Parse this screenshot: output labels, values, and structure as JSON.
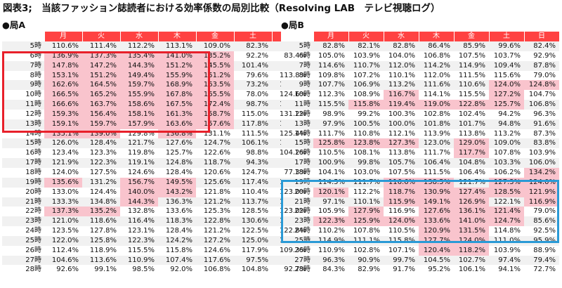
{
  "title": "図表3;　当該ファッション誌読者における効率係数の局別比較（Resolving LAB　テレビ視聴ログ）",
  "colors": {
    "header_bg": "#ff4242",
    "highlight": "#f9c4cd",
    "box_a": "#e8202a",
    "box_b": "#2a9ad6"
  },
  "headers": [
    "月",
    "火",
    "水",
    "木",
    "金",
    "土",
    "日"
  ],
  "panels": [
    {
      "label": "●局A",
      "hours": [
        "5時",
        "6時",
        "7時",
        "8時",
        "9時",
        "10時",
        "11時",
        "12時",
        "13時",
        "14時",
        "15時",
        "16時",
        "17時",
        "18時",
        "19時",
        "20時",
        "21時",
        "22時",
        "23時",
        "24時",
        "25時",
        "26時",
        "27時",
        "28時"
      ],
      "rows": [
        [
          "110.6%",
          "111.4%",
          "112.2%",
          "113.1%",
          "109.0%",
          "82.3%",
          "98.3%"
        ],
        [
          "136.9%",
          "137.3%",
          "135.4%",
          "141.0%",
          "135.2%",
          "92.2%",
          "83.4%"
        ],
        [
          "147.8%",
          "147.2%",
          "144.3%",
          "151.2%",
          "145.5%",
          "101.4%",
          "98.1%"
        ],
        [
          "153.1%",
          "151.2%",
          "149.4%",
          "155.9%",
          "151.2%",
          "79.6%",
          "113.8%"
        ],
        [
          "162.6%",
          "164.5%",
          "159.7%",
          "168.9%",
          "163.5%",
          "73.2%",
          "117.9%"
        ],
        [
          "166.5%",
          "165.2%",
          "155.9%",
          "167.8%",
          "165.5%",
          "78.0%",
          "124.6%"
        ],
        [
          "166.6%",
          "163.7%",
          "158.6%",
          "167.5%",
          "172.4%",
          "98.7%",
          "127.3%"
        ],
        [
          "159.3%",
          "156.4%",
          "158.1%",
          "161.3%",
          "158.7%",
          "115.0%",
          "131.2%"
        ],
        [
          "159.1%",
          "159.7%",
          "157.9%",
          "163.6%",
          "157.6%",
          "117.8%",
          "132.5%"
        ],
        [
          "135.1%",
          "139.0%",
          "129.8%",
          "136.8%",
          "131.1%",
          "111.5%",
          "125.4%"
        ],
        [
          "126.0%",
          "128.4%",
          "121.7%",
          "127.6%",
          "124.7%",
          "106.1%",
          "104.7%"
        ],
        [
          "123.4%",
          "123.3%",
          "119.8%",
          "125.7%",
          "122.6%",
          "98.8%",
          "104.2%"
        ],
        [
          "121.9%",
          "122.3%",
          "119.1%",
          "124.8%",
          "118.7%",
          "94.3%",
          "90.7%"
        ],
        [
          "124.0%",
          "127.5%",
          "124.6%",
          "128.4%",
          "120.6%",
          "124.7%",
          "77.3%"
        ],
        [
          "135.6%",
          "131.2%",
          "156.7%",
          "149.5%",
          "125.6%",
          "117.4%",
          "110.8%"
        ],
        [
          "133.0%",
          "124.4%",
          "140.0%",
          "143.2%",
          "121.8%",
          "110.4%",
          "123.0%"
        ],
        [
          "133.3%",
          "134.8%",
          "144.3%",
          "136.3%",
          "121.2%",
          "113.7%",
          "120.5%"
        ],
        [
          "137.3%",
          "135.2%",
          "132.8%",
          "133.6%",
          "125.3%",
          "128.5%",
          "123.0%"
        ],
        [
          "121.0%",
          "118.6%",
          "116.4%",
          "118.3%",
          "122.8%",
          "130.6%",
          "131.5%"
        ],
        [
          "123.5%",
          "127.8%",
          "123.1%",
          "128.4%",
          "121.2%",
          "122.5%",
          "122.8%"
        ],
        [
          "122.0%",
          "125.8%",
          "122.3%",
          "124.2%",
          "127.2%",
          "125.0%",
          "117.0%"
        ],
        [
          "112.4%",
          "118.9%",
          "115.5%",
          "115.8%",
          "124.6%",
          "117.9%",
          "109.3%"
        ],
        [
          "104.6%",
          "113.6%",
          "110.9%",
          "107.4%",
          "117.6%",
          "97.5%",
          "95.4%"
        ],
        [
          "92.6%",
          "99.1%",
          "98.5%",
          "92.0%",
          "106.8%",
          "104.8%",
          "92.7%"
        ]
      ],
      "highlights": [
        [
          1,
          0
        ],
        [
          1,
          1
        ],
        [
          1,
          2
        ],
        [
          1,
          3
        ],
        [
          1,
          4
        ],
        [
          2,
          0
        ],
        [
          2,
          1
        ],
        [
          2,
          2
        ],
        [
          2,
          3
        ],
        [
          2,
          4
        ],
        [
          3,
          0
        ],
        [
          3,
          1
        ],
        [
          3,
          2
        ],
        [
          3,
          3
        ],
        [
          3,
          4
        ],
        [
          4,
          0
        ],
        [
          4,
          1
        ],
        [
          4,
          2
        ],
        [
          4,
          3
        ],
        [
          4,
          4
        ],
        [
          5,
          0
        ],
        [
          5,
          1
        ],
        [
          5,
          2
        ],
        [
          5,
          3
        ],
        [
          5,
          4
        ],
        [
          6,
          0
        ],
        [
          6,
          1
        ],
        [
          6,
          2
        ],
        [
          6,
          3
        ],
        [
          6,
          4
        ],
        [
          7,
          0
        ],
        [
          7,
          1
        ],
        [
          7,
          2
        ],
        [
          7,
          3
        ],
        [
          7,
          4
        ],
        [
          8,
          0
        ],
        [
          8,
          1
        ],
        [
          8,
          2
        ],
        [
          8,
          3
        ],
        [
          8,
          4
        ],
        [
          9,
          0
        ],
        [
          9,
          1
        ],
        [
          9,
          3
        ],
        [
          14,
          0
        ],
        [
          14,
          2
        ],
        [
          14,
          3
        ],
        [
          15,
          2
        ],
        [
          15,
          3
        ],
        [
          16,
          2
        ],
        [
          17,
          0
        ],
        [
          17,
          1
        ]
      ]
    },
    {
      "label": "●局B",
      "hours": [
        "5時",
        "6時",
        "7時",
        "8時",
        "9時",
        "10時",
        "11時",
        "12時",
        "13時",
        "14時",
        "15時",
        "16時",
        "17時",
        "18時",
        "19時",
        "20時",
        "21時",
        "22時",
        "23時",
        "24時",
        "25時",
        "26時",
        "27時",
        "28時"
      ],
      "rows": [
        [
          "82.8%",
          "82.1%",
          "82.8%",
          "86.4%",
          "85.9%",
          "99.6%",
          "82.4%"
        ],
        [
          "105.0%",
          "103.9%",
          "104.0%",
          "106.8%",
          "107.5%",
          "103.7%",
          "92.9%"
        ],
        [
          "114.6%",
          "110.7%",
          "112.0%",
          "114.2%",
          "114.9%",
          "109.4%",
          "87.8%"
        ],
        [
          "109.8%",
          "107.2%",
          "110.1%",
          "112.0%",
          "111.5%",
          "115.6%",
          "79.0%"
        ],
        [
          "107.7%",
          "106.9%",
          "113.2%",
          "111.6%",
          "110.6%",
          "124.0%",
          "124.8%"
        ],
        [
          "112.3%",
          "108.9%",
          "116.7%",
          "114.1%",
          "115.5%",
          "127.2%",
          "104.7%"
        ],
        [
          "115.5%",
          "115.8%",
          "119.4%",
          "119.0%",
          "122.8%",
          "125.7%",
          "106.8%"
        ],
        [
          "98.9%",
          "99.2%",
          "100.3%",
          "102.8%",
          "102.4%",
          "94.2%",
          "96.3%"
        ],
        [
          "97.9%",
          "100.5%",
          "100.0%",
          "101.8%",
          "101.7%",
          "94.8%",
          "91.6%"
        ],
        [
          "111.7%",
          "110.8%",
          "112.1%",
          "113.9%",
          "113.8%",
          "113.2%",
          "87.3%"
        ],
        [
          "125.8%",
          "123.8%",
          "127.3%",
          "123.0%",
          "129.0%",
          "109.0%",
          "83.8%"
        ],
        [
          "110.5%",
          "108.1%",
          "113.8%",
          "111.7%",
          "117.7%",
          "107.8%",
          "103.9%"
        ],
        [
          "100.9%",
          "99.8%",
          "105.7%",
          "106.4%",
          "104.8%",
          "103.3%",
          "106.0%"
        ],
        [
          "104.1%",
          "103.0%",
          "107.5%",
          "111.5%",
          "106.4%",
          "106.2%",
          "134.2%"
        ],
        [
          "114.5%",
          "111.7%",
          "116.6%",
          "138.5%",
          "121.7%",
          "127.3%",
          "124.0%"
        ],
        [
          "120.1%",
          "112.2%",
          "118.7%",
          "130.9%",
          "127.4%",
          "128.5%",
          "121.9%"
        ],
        [
          "97.1%",
          "110.1%",
          "115.9%",
          "149.1%",
          "126.9%",
          "122.1%",
          "116.9%"
        ],
        [
          "105.9%",
          "127.9%",
          "116.9%",
          "127.6%",
          "136.1%",
          "121.4%",
          "79.0%"
        ],
        [
          "122.3%",
          "125.9%",
          "124.0%",
          "133.6%",
          "141.0%",
          "124.7%",
          "85.6%"
        ],
        [
          "110.2%",
          "107.8%",
          "110.5%",
          "120.9%",
          "131.5%",
          "114.8%",
          "92.5%"
        ],
        [
          "114.9%",
          "111.1%",
          "115.8%",
          "127.7%",
          "124.0%",
          "111.0%",
          "95.9%"
        ],
        [
          "110.9%",
          "102.8%",
          "107.1%",
          "120.4%",
          "118.2%",
          "103.9%",
          "88.9%"
        ],
        [
          "96.3%",
          "90.9%",
          "99.7%",
          "104.5%",
          "102.7%",
          "97.4%",
          "79.4%"
        ],
        [
          "84.3%",
          "82.9%",
          "91.7%",
          "95.2%",
          "106.1%",
          "94.1%",
          "72.7%"
        ]
      ],
      "highlights": [
        [
          4,
          5
        ],
        [
          4,
          6
        ],
        [
          5,
          2
        ],
        [
          5,
          5
        ],
        [
          6,
          1
        ],
        [
          6,
          2
        ],
        [
          6,
          3
        ],
        [
          6,
          4
        ],
        [
          6,
          5
        ],
        [
          10,
          0
        ],
        [
          10,
          1
        ],
        [
          10,
          2
        ],
        [
          10,
          4
        ],
        [
          11,
          4
        ],
        [
          13,
          6
        ],
        [
          14,
          2
        ],
        [
          14,
          3
        ],
        [
          14,
          5
        ],
        [
          14,
          6
        ],
        [
          15,
          0
        ],
        [
          15,
          2
        ],
        [
          15,
          3
        ],
        [
          15,
          4
        ],
        [
          15,
          5
        ],
        [
          15,
          6
        ],
        [
          16,
          2
        ],
        [
          16,
          3
        ],
        [
          16,
          4
        ],
        [
          16,
          6
        ],
        [
          17,
          1
        ],
        [
          17,
          3
        ],
        [
          17,
          4
        ],
        [
          17,
          5
        ],
        [
          18,
          0
        ],
        [
          18,
          1
        ],
        [
          18,
          2
        ],
        [
          18,
          3
        ],
        [
          18,
          4
        ],
        [
          18,
          5
        ],
        [
          19,
          3
        ],
        [
          19,
          4
        ],
        [
          20,
          3
        ],
        [
          20,
          4
        ],
        [
          21,
          3
        ],
        [
          21,
          4
        ]
      ]
    }
  ]
}
